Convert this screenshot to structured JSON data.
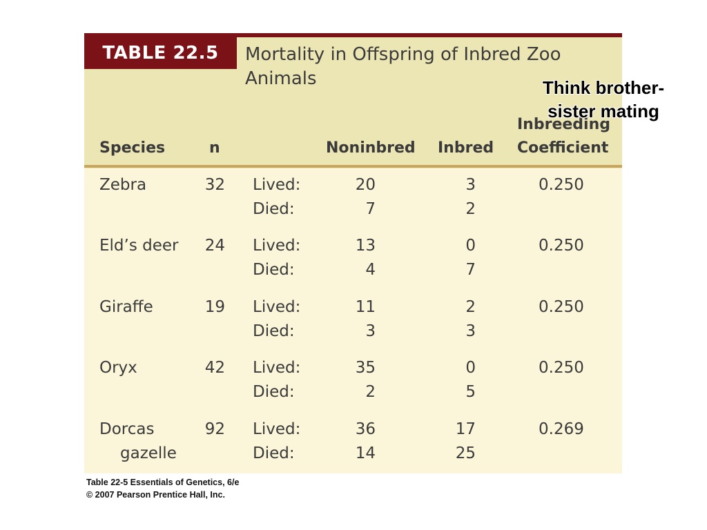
{
  "table": {
    "label": "TABLE 22.5",
    "title": "Mortality in Offspring of Inbred Zoo Animals",
    "headers": {
      "species": "Species",
      "n": "n",
      "noninbred": "Noninbred",
      "inbred": "Inbred",
      "coefficient_line1": "Inbreeding",
      "coefficient_line2": "Coefficient"
    },
    "outcome_labels": {
      "lived": "Lived:",
      "died": "Died:"
    },
    "rows": [
      {
        "species_line1": "Zebra",
        "species_line2": "",
        "n": "32",
        "noninbred_lived": "20",
        "noninbred_died": "7",
        "inbred_lived": "3",
        "inbred_died": "2",
        "coefficient": "0.250"
      },
      {
        "species_line1": "Eld’s deer",
        "species_line2": "",
        "n": "24",
        "noninbred_lived": "13",
        "noninbred_died": "4",
        "inbred_lived": "0",
        "inbred_died": "7",
        "coefficient": "0.250"
      },
      {
        "species_line1": "Giraffe",
        "species_line2": "",
        "n": "19",
        "noninbred_lived": "11",
        "noninbred_died": "3",
        "inbred_lived": "2",
        "inbred_died": "3",
        "coefficient": "0.250"
      },
      {
        "species_line1": "Oryx",
        "species_line2": "",
        "n": "42",
        "noninbred_lived": "35",
        "noninbred_died": "2",
        "inbred_lived": "0",
        "inbred_died": "5",
        "coefficient": "0.250"
      },
      {
        "species_line1": "Dorcas",
        "species_line2": "gazelle",
        "n": "92",
        "noninbred_lived": "36",
        "noninbred_died": "14",
        "inbred_lived": "17",
        "inbred_died": "25",
        "coefficient": "0.269"
      }
    ]
  },
  "annotation": {
    "line1": "Think brother-",
    "line2": "sister mating"
  },
  "credit": {
    "line1": "Table 22-5  Essentials of Genetics, 6/e",
    "line2": "© 2007 Pearson Prentice Hall, Inc."
  },
  "colors": {
    "label_background": "#7a1218",
    "header_band": "#ece5b4",
    "body_background": "#fbf6d9",
    "header_rule": "#c9a45c"
  }
}
